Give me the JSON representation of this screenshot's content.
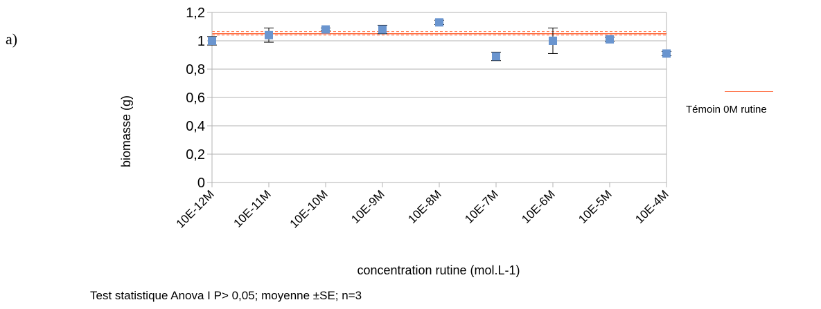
{
  "panel_label": "a)",
  "footnote": "Test statistique Anova I P> 0,05; moyenne ±SE;  n=3",
  "colors": {
    "marker": "#6a95cf",
    "errorbar": "#000000",
    "reference_line": "#ff6a3d",
    "gridline": "#b3b3b3"
  },
  "chart_data": {
    "type": "scatter",
    "title": "",
    "xlabel": "concentration rutine (mol.L-1)",
    "ylabel": "biomasse (g)",
    "ylim": [
      0,
      1.2
    ],
    "y_ticks": [
      {
        "value": 0,
        "label": "0"
      },
      {
        "value": 0.2,
        "label": "0,2"
      },
      {
        "value": 0.4,
        "label": "0,4"
      },
      {
        "value": 0.6,
        "label": "0,6"
      },
      {
        "value": 0.8,
        "label": "0,8"
      },
      {
        "value": 1.0,
        "label": "1"
      },
      {
        "value": 1.2,
        "label": "1,2"
      }
    ],
    "grid": true,
    "categories": [
      "10E-12M",
      "10E-11M",
      "10E-10M",
      "10E-9M",
      "10E-8M",
      "10E-7M",
      "10E-6M",
      "10E-5M",
      "10E-4M"
    ],
    "series": [
      {
        "values": [
          1.0,
          1.04,
          1.08,
          1.08,
          1.13,
          0.89,
          1.0,
          1.01,
          0.91
        ],
        "errors": [
          0.03,
          0.05,
          0.01,
          0.03,
          0.015,
          0.03,
          0.09,
          0.015,
          0.015
        ]
      }
    ],
    "reference": {
      "name": "Témoin 0M rutine",
      "value": 1.05,
      "band": [
        1.04,
        1.065
      ]
    },
    "legend_position": "right"
  }
}
